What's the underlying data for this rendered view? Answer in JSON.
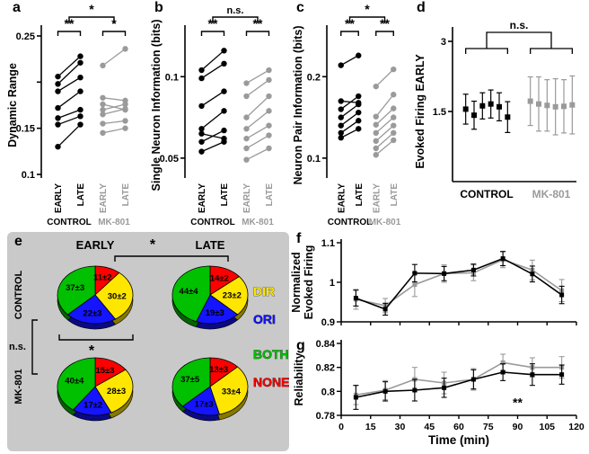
{
  "figure": {
    "colors": {
      "control": "#000000",
      "mk801": "#9a9a9a",
      "panel_e_bg": "#c9c9c9"
    }
  },
  "chart_data": [
    {
      "id": "a",
      "type": "paired_scatter",
      "panel_label": "a",
      "ylabel": "Dynamic Range",
      "ylim": [
        0.1,
        0.25
      ],
      "yticks": [
        {
          "v": 0.25,
          "label": "0.25"
        },
        {
          "v": 0.2,
          "label": ""
        },
        {
          "v": 0.15,
          "label": "0.15"
        },
        {
          "v": 0.1,
          "label": "0.1"
        }
      ],
      "sig_top": "*",
      "groups": [
        {
          "name": "CONTROL",
          "color": "#000000",
          "sig": "**",
          "conditions": [
            "EARLY",
            "LATE"
          ],
          "pairs": [
            [
              0.13,
              0.154
            ],
            [
              0.154,
              0.163
            ],
            [
              0.161,
              0.17
            ],
            [
              0.172,
              0.19
            ],
            [
              0.19,
              0.205
            ],
            [
              0.198,
              0.221
            ],
            [
              0.206,
              0.228
            ]
          ]
        },
        {
          "name": "MK-801",
          "color": "#9a9a9a",
          "sig": "*",
          "conditions": [
            "EARLY",
            "LATE"
          ],
          "pairs": [
            [
              0.145,
              0.15
            ],
            [
              0.155,
              0.158
            ],
            [
              0.165,
              0.171
            ],
            [
              0.17,
              0.176
            ],
            [
              0.176,
              0.17
            ],
            [
              0.183,
              0.18
            ],
            [
              0.218,
              0.236
            ]
          ]
        }
      ]
    },
    {
      "id": "b",
      "type": "paired_scatter",
      "panel_label": "b",
      "ylabel": "Single Neuron Information (bits)",
      "ylim": [
        0.04,
        0.125
      ],
      "yticks": [
        {
          "v": 0.1,
          "label": "0.1"
        },
        {
          "v": 0.05,
          "label": "0.05"
        }
      ],
      "sig_top": "n.s.",
      "groups": [
        {
          "name": "CONTROL",
          "color": "#000000",
          "sig": "**",
          "conditions": [
            "EARLY",
            "LATE"
          ],
          "pairs": [
            [
              0.054,
              0.06
            ],
            [
              0.06,
              0.067
            ],
            [
              0.065,
              0.062
            ],
            [
              0.068,
              0.079
            ],
            [
              0.082,
              0.091
            ],
            [
              0.099,
              0.108
            ],
            [
              0.104,
              0.116
            ]
          ]
        },
        {
          "name": "MK-801",
          "color": "#9a9a9a",
          "sig": "**",
          "conditions": [
            "EARLY",
            "LATE"
          ],
          "pairs": [
            [
              0.049,
              0.056
            ],
            [
              0.056,
              0.064
            ],
            [
              0.062,
              0.07
            ],
            [
              0.068,
              0.079
            ],
            [
              0.075,
              0.088
            ],
            [
              0.088,
              0.098
            ],
            [
              0.096,
              0.104
            ]
          ]
        }
      ]
    },
    {
      "id": "c",
      "type": "paired_scatter",
      "panel_label": "c",
      "ylabel": "Neuron Pair Information (bits)",
      "ylim": [
        0.08,
        0.25
      ],
      "yticks": [
        {
          "v": 0.2,
          "label": "0.2"
        },
        {
          "v": 0.1,
          "label": "0.1"
        }
      ],
      "sig_top": "*",
      "groups": [
        {
          "name": "CONTROL",
          "color": "#000000",
          "sig": "**",
          "conditions": [
            "EARLY",
            "LATE"
          ],
          "pairs": [
            [
              0.125,
              0.136
            ],
            [
              0.131,
              0.146
            ],
            [
              0.14,
              0.156
            ],
            [
              0.15,
              0.166
            ],
            [
              0.16,
              0.176
            ],
            [
              0.17,
              0.168
            ],
            [
              0.214,
              0.226
            ]
          ]
        },
        {
          "name": "MK-801",
          "color": "#9a9a9a",
          "sig": "**",
          "conditions": [
            "EARLY",
            "LATE"
          ],
          "pairs": [
            [
              0.104,
              0.122
            ],
            [
              0.112,
              0.131
            ],
            [
              0.121,
              0.14
            ],
            [
              0.131,
              0.15
            ],
            [
              0.141,
              0.161
            ],
            [
              0.151,
              0.178
            ],
            [
              0.188,
              0.209
            ]
          ]
        }
      ]
    },
    {
      "id": "d",
      "type": "errorbar_points",
      "panel_label": "d",
      "ylabel": "Evoked Firing EARLY",
      "ylim": [
        0,
        3
      ],
      "yticks": [
        {
          "v": 3,
          "label": "3"
        },
        {
          "v": 1.5,
          "label": "1.5"
        }
      ],
      "sig_top": "n.s.",
      "groups": [
        {
          "name": "CONTROL",
          "color": "#000000",
          "points": [
            {
              "y": 1.55,
              "e": 0.32
            },
            {
              "y": 1.42,
              "e": 0.3
            },
            {
              "y": 1.62,
              "e": 0.28
            },
            {
              "y": 1.66,
              "e": 0.3
            },
            {
              "y": 1.6,
              "e": 0.3
            },
            {
              "y": 1.38,
              "e": 0.33
            }
          ]
        },
        {
          "name": "MK-801",
          "color": "#9a9a9a",
          "points": [
            {
              "y": 1.72,
              "e": 0.52
            },
            {
              "y": 1.66,
              "e": 0.58
            },
            {
              "y": 1.63,
              "e": 0.55
            },
            {
              "y": 1.6,
              "e": 0.6
            },
            {
              "y": 1.61,
              "e": 0.57
            },
            {
              "y": 1.64,
              "e": 0.62
            }
          ]
        }
      ]
    },
    {
      "id": "e",
      "type": "pie_grid",
      "panel_label": "e",
      "col_headers": [
        "EARLY",
        "LATE"
      ],
      "row_headers": [
        "CONTROL",
        "MK-801"
      ],
      "sig": {
        "header": "*",
        "rows": "n.s.",
        "early_column": "*"
      },
      "slices": [
        {
          "key": "NONE",
          "color": "#ff0000"
        },
        {
          "key": "DIR",
          "color": "#ffe600"
        },
        {
          "key": "ORI",
          "color": "#1414ff"
        },
        {
          "key": "BOTH",
          "color": "#00c000"
        }
      ],
      "legend": [
        {
          "label": "DIR",
          "color": "#ffe600"
        },
        {
          "label": "ORI",
          "color": "#1414ff"
        },
        {
          "label": "BOTH",
          "color": "#00c000"
        },
        {
          "label": "NONE",
          "color": "#ff0000"
        }
      ],
      "pies": [
        {
          "row": "CONTROL",
          "col": "EARLY",
          "data": [
            {
              "key": "NONE",
              "pct": 11,
              "label": "11±2"
            },
            {
              "key": "DIR",
              "pct": 30,
              "label": "30±2"
            },
            {
              "key": "ORI",
              "pct": 22,
              "label": "22±3"
            },
            {
              "key": "BOTH",
              "pct": 37,
              "label": "37±3"
            }
          ]
        },
        {
          "row": "CONTROL",
          "col": "LATE",
          "data": [
            {
              "key": "NONE",
              "pct": 14,
              "label": "14±2"
            },
            {
              "key": "DIR",
              "pct": 23,
              "label": "23±2"
            },
            {
              "key": "ORI",
              "pct": 19,
              "label": "19±3"
            },
            {
              "key": "BOTH",
              "pct": 44,
              "label": "44±4"
            }
          ]
        },
        {
          "row": "MK-801",
          "col": "EARLY",
          "data": [
            {
              "key": "NONE",
              "pct": 15,
              "label": "15±3"
            },
            {
              "key": "DIR",
              "pct": 28,
              "label": "28±3"
            },
            {
              "key": "ORI",
              "pct": 17,
              "label": "17±2"
            },
            {
              "key": "BOTH",
              "pct": 40,
              "label": "40±4"
            }
          ]
        },
        {
          "row": "MK-801",
          "col": "LATE",
          "data": [
            {
              "key": "NONE",
              "pct": 13,
              "label": "13±3"
            },
            {
              "key": "DIR",
              "pct": 33,
              "label": "33±4"
            },
            {
              "key": "ORI",
              "pct": 17,
              "label": "17±3"
            },
            {
              "key": "BOTH",
              "pct": 37,
              "label": "37±5"
            }
          ]
        }
      ]
    },
    {
      "id": "f",
      "type": "line_errorbar",
      "panel_label": "f",
      "ylabel_lines": [
        "Normalized",
        "Evoked Firing"
      ],
      "ylim": [
        0.9,
        1.1
      ],
      "yticks": [
        {
          "v": 1.1,
          "label": "1.1"
        },
        {
          "v": 1.0,
          "label": "1"
        },
        {
          "v": 0.9,
          "label": "0.9"
        }
      ],
      "xlim": [
        0,
        120
      ],
      "xticks": [
        0,
        15,
        30,
        45,
        60,
        75,
        90,
        105,
        120
      ],
      "show_xtick_labels": false,
      "x": [
        7.5,
        22.5,
        37.5,
        52.5,
        67.5,
        82.5,
        97.5,
        112.5
      ],
      "series": [
        {
          "name": "MK-801",
          "color": "#9a9a9a",
          "y": [
            0.957,
            0.941,
            0.994,
            1.022,
            1.024,
            1.057,
            1.031,
            0.979
          ],
          "err": [
            0.025,
            0.018,
            0.03,
            0.022,
            0.02,
            0.02,
            0.025,
            0.028
          ]
        },
        {
          "name": "CONTROL",
          "color": "#000000",
          "y": [
            0.96,
            0.932,
            1.023,
            1.022,
            1.031,
            1.06,
            1.021,
            0.968
          ],
          "err": [
            0.02,
            0.015,
            0.022,
            0.018,
            0.015,
            0.018,
            0.02,
            0.022
          ]
        }
      ]
    },
    {
      "id": "g",
      "type": "line_errorbar",
      "panel_label": "g",
      "ylabel_lines": [
        "Reliability"
      ],
      "ylim": [
        0.78,
        0.84
      ],
      "yticks": [
        {
          "v": 0.84,
          "label": "0.84"
        },
        {
          "v": 0.82,
          "label": "0.82"
        },
        {
          "v": 0.8,
          "label": "0.8"
        },
        {
          "v": 0.78,
          "label": "0.78"
        }
      ],
      "xlim": [
        0,
        120
      ],
      "xticks": [
        0,
        15,
        30,
        45,
        60,
        75,
        90,
        105,
        120
      ],
      "show_xtick_labels": true,
      "xlabel": "Time (min)",
      "annotation": {
        "text": "**",
        "x": 90,
        "y": 0.787
      },
      "x": [
        7.5,
        22.5,
        37.5,
        52.5,
        67.5,
        82.5,
        97.5,
        112.5
      ],
      "series": [
        {
          "name": "MK-801",
          "color": "#9a9a9a",
          "y": [
            0.797,
            0.801,
            0.81,
            0.807,
            0.81,
            0.824,
            0.82,
            0.82
          ],
          "err": [
            0.008,
            0.008,
            0.01,
            0.009,
            0.009,
            0.007,
            0.008,
            0.009
          ]
        },
        {
          "name": "CONTROL",
          "color": "#000000",
          "y": [
            0.795,
            0.8,
            0.801,
            0.803,
            0.81,
            0.816,
            0.814,
            0.814
          ],
          "err": [
            0.01,
            0.008,
            0.009,
            0.008,
            0.008,
            0.007,
            0.009,
            0.008
          ]
        }
      ]
    }
  ]
}
